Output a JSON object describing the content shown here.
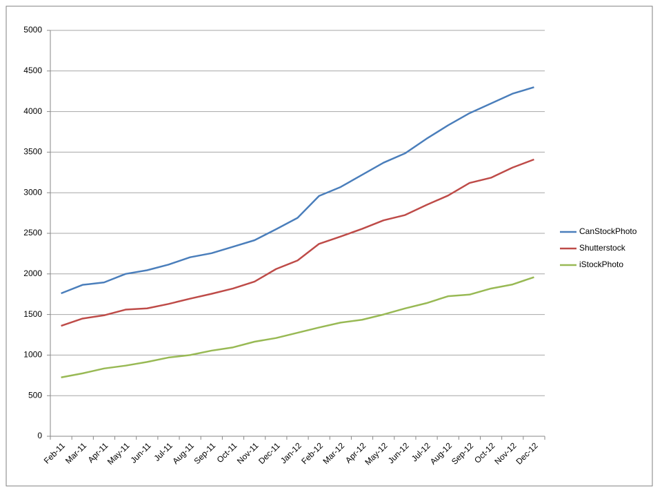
{
  "chart_data": {
    "type": "line",
    "categories": [
      "Feb-11",
      "Mar-11",
      "Apr-11",
      "May-11",
      "Jun-11",
      "Jul-11",
      "Aug-11",
      "Sep-11",
      "Oct-11",
      "Nov-11",
      "Dec-11",
      "Jan-12",
      "Feb-12",
      "Mar-12",
      "Apr-12",
      "May-12",
      "Jun-12",
      "Jul-12",
      "Aug-12",
      "Sep-12",
      "Oct-12",
      "Nov-12",
      "Dec-12"
    ],
    "series": [
      {
        "name": "CanStockPhoto",
        "color": "#4a7ebb",
        "values": [
          1760,
          1865,
          1895,
          2000,
          2045,
          2115,
          2205,
          2255,
          2335,
          2415,
          2550,
          2690,
          2960,
          3070,
          3220,
          3370,
          3485,
          3665,
          3830,
          3980,
          4100,
          4220,
          4300
        ]
      },
      {
        "name": "Shutterstock",
        "color": "#be4b48",
        "values": [
          1360,
          1450,
          1490,
          1560,
          1575,
          1630,
          1695,
          1755,
          1820,
          1905,
          2060,
          2165,
          2370,
          2460,
          2555,
          2660,
          2725,
          2850,
          2965,
          3120,
          3185,
          3310,
          3410
        ]
      },
      {
        "name": "iStockPhoto",
        "color": "#98b954",
        "values": [
          725,
          775,
          835,
          870,
          915,
          970,
          1000,
          1055,
          1095,
          1165,
          1210,
          1275,
          1340,
          1400,
          1435,
          1500,
          1575,
          1640,
          1725,
          1745,
          1820,
          1870,
          1960
        ]
      }
    ],
    "ylim": [
      0,
      5000
    ],
    "yticks": [
      0,
      500,
      1000,
      1500,
      2000,
      2500,
      3000,
      3500,
      4000,
      4500,
      5000
    ],
    "grid": true,
    "legend": "right"
  }
}
